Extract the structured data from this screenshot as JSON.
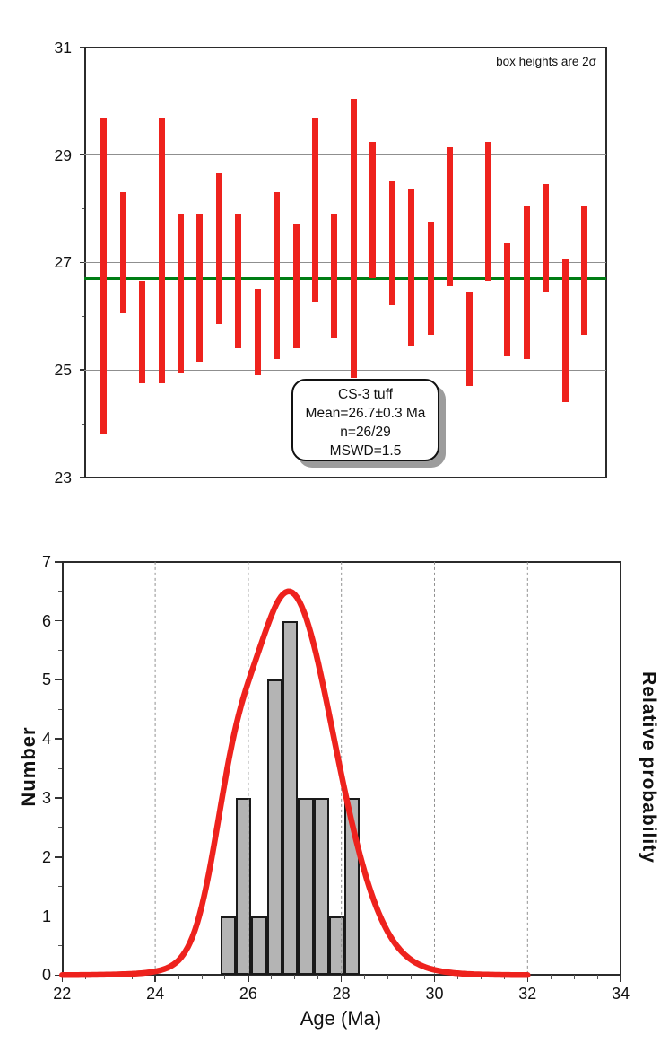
{
  "colors": {
    "red": "#ee221d",
    "green": "#007d14",
    "grid": "#8f8f8f",
    "hist_fill": "#b4b4b4",
    "hist_border": "#1a1a1a",
    "frame": "#2b2b2b"
  },
  "chart_data": [
    {
      "type": "bar",
      "subtype": "weighted-mean-error-bar-plot",
      "annotation": "box heights are 2σ",
      "info_box_lines": [
        "CS-3 tuff",
        "Mean=26.7±0.3 Ma",
        "n=26/29",
        "MSWD=1.5"
      ],
      "ylim": [
        23,
        31
      ],
      "y_major_ticks": [
        31,
        29,
        27,
        25,
        23
      ],
      "y_minor_ticks": [
        30,
        28,
        26,
        24
      ],
      "gridlines": [
        29,
        27,
        25
      ],
      "mean_line_value": 26.7,
      "bars_meaning": "each bar spans [low, high] = mean ± sigma of one analysis, in Ma",
      "bars": [
        [
          23.8,
          29.7
        ],
        [
          26.05,
          28.3
        ],
        [
          24.75,
          26.65
        ],
        [
          24.75,
          29.7
        ],
        [
          24.95,
          27.9
        ],
        [
          25.15,
          27.9
        ],
        [
          25.85,
          28.65
        ],
        [
          25.4,
          27.9
        ],
        [
          24.9,
          26.5
        ],
        [
          25.2,
          28.3
        ],
        [
          25.4,
          27.7
        ],
        [
          26.25,
          29.7
        ],
        [
          25.6,
          27.9
        ],
        [
          24.85,
          30.05
        ],
        [
          26.7,
          29.25
        ],
        [
          26.2,
          28.5
        ],
        [
          25.45,
          28.35
        ],
        [
          25.65,
          27.75
        ],
        [
          26.55,
          29.15
        ],
        [
          24.7,
          26.45
        ],
        [
          26.65,
          29.25
        ],
        [
          25.25,
          27.35
        ],
        [
          25.2,
          28.05
        ],
        [
          26.45,
          28.45
        ],
        [
          24.4,
          27.05
        ],
        [
          25.65,
          28.05
        ]
      ]
    },
    {
      "type": "histogram",
      "subtype": "histogram-with-relative-probability-curve",
      "xlabel": "Age (Ma)",
      "ylabel": "Number",
      "y2label": "Relative probability",
      "xlim": [
        22,
        34
      ],
      "ylim": [
        0,
        7
      ],
      "x_major_ticks": [
        22,
        24,
        26,
        28,
        30,
        32,
        34
      ],
      "x_minor_step": 0.5,
      "x_gridlines": [
        24,
        26,
        28,
        30,
        32
      ],
      "y_major_ticks": [
        0,
        1,
        2,
        3,
        4,
        5,
        6,
        7
      ],
      "y_minor_step": 0.5,
      "histogram": {
        "bin_start": 25.4,
        "bin_width": 0.3333,
        "counts": [
          1,
          3,
          1,
          5,
          6,
          3,
          3,
          1,
          3
        ]
      },
      "curve": {
        "description": "relative probability curve: sum of gaussians of the 26 analyses (mu=(low+high)/2, sigma=(high-low)/4), normalized",
        "peak_value": 6.5,
        "peak_x": 26.86,
        "x_range": [
          22,
          32
        ]
      }
    }
  ]
}
